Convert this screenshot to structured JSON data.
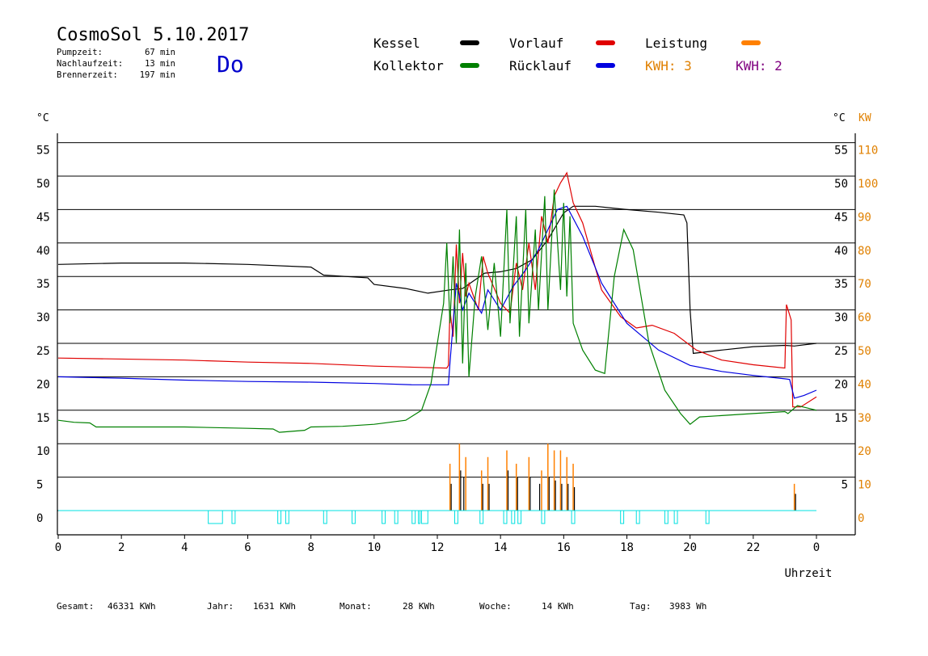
{
  "header": {
    "title": "CosmoSol 5.10.2017",
    "day": "Do",
    "stats": [
      {
        "label": "Pumpzeit:",
        "value": "67 min"
      },
      {
        "label": "Nachlaufzeit:",
        "value": "13 min"
      },
      {
        "label": "Brennerzeit:",
        "value": "197 min"
      }
    ]
  },
  "legend": [
    {
      "label": "Kessel",
      "color": "#000000"
    },
    {
      "label": "Vorlauf",
      "color": "#e00000"
    },
    {
      "label": "Leistung",
      "color": "#ff8000"
    },
    {
      "label": "Kollektor",
      "color": "#008000"
    },
    {
      "label": "Rücklauf",
      "color": "#0000e0"
    }
  ],
  "kwh": [
    {
      "label": "KWH: 3",
      "color": "#e08000"
    },
    {
      "label": "KWH: 2",
      "color": "#800080"
    }
  ],
  "footer": [
    {
      "label": "Gesamt:",
      "value": "46331 KWh"
    },
    {
      "label": "Jahr:",
      "value": "1631 KWh"
    },
    {
      "label": "Monat:",
      "value": "28 KWh"
    },
    {
      "label": "Woche:",
      "value": "14 KWh"
    },
    {
      "label": "Tag:",
      "value": "3983 Wh"
    }
  ],
  "chart_data": {
    "type": "line",
    "xlabel": "Uhrzeit",
    "ylabel_left": "°C",
    "ylabel_right": "°C",
    "ylabel_right2": "KW",
    "xlim": [
      0,
      24
    ],
    "ylim": [
      -4,
      60
    ],
    "x_ticks": [
      "0",
      "2",
      "4",
      "6",
      "8",
      "10",
      "12",
      "14",
      "16",
      "18",
      "20",
      "22",
      "0"
    ],
    "y_ticks_left": [
      0,
      5,
      10,
      15,
      20,
      25,
      30,
      35,
      40,
      45,
      50,
      55
    ],
    "y_ticks_right": [
      5,
      15,
      20,
      25,
      30,
      35,
      40,
      45,
      50,
      55
    ],
    "y_ticks_kw": [
      0,
      10,
      20,
      30,
      40,
      50,
      60,
      70,
      80,
      90,
      100,
      110
    ],
    "grid": true,
    "series": [
      {
        "name": "Kessel",
        "color": "#000000",
        "points": [
          [
            0,
            36.8
          ],
          [
            2,
            37
          ],
          [
            4,
            37
          ],
          [
            6,
            36.8
          ],
          [
            8,
            36.4
          ],
          [
            8.4,
            35.2
          ],
          [
            9.8,
            34.8
          ],
          [
            10,
            33.8
          ],
          [
            11,
            33.2
          ],
          [
            11.7,
            32.5
          ],
          [
            12.4,
            33
          ],
          [
            12.8,
            33.2
          ],
          [
            13.2,
            34.5
          ],
          [
            13.5,
            35.5
          ],
          [
            14,
            35.7
          ],
          [
            14.5,
            36.2
          ],
          [
            15,
            37.5
          ],
          [
            15.5,
            40.5
          ],
          [
            16,
            44.5
          ],
          [
            16.3,
            45.5
          ],
          [
            17,
            45.5
          ],
          [
            18,
            45
          ],
          [
            19,
            44.6
          ],
          [
            19.8,
            44.2
          ],
          [
            19.9,
            43
          ],
          [
            20,
            30
          ],
          [
            20.1,
            23.5
          ],
          [
            21,
            24
          ],
          [
            22,
            24.5
          ],
          [
            23,
            24.7
          ],
          [
            23.3,
            24.6
          ],
          [
            24,
            25
          ]
        ]
      },
      {
        "name": "Vorlauf",
        "color": "#e00000",
        "points": [
          [
            0,
            22.8
          ],
          [
            4,
            22.5
          ],
          [
            6,
            22.2
          ],
          [
            8,
            22
          ],
          [
            10,
            21.6
          ],
          [
            11.5,
            21.4
          ],
          [
            12.3,
            21.3
          ],
          [
            12.35,
            21.7
          ],
          [
            12.4,
            30
          ],
          [
            12.5,
            26
          ],
          [
            12.6,
            39.8
          ],
          [
            12.7,
            31
          ],
          [
            12.8,
            38.5
          ],
          [
            12.9,
            32
          ],
          [
            13,
            34
          ],
          [
            13.3,
            30
          ],
          [
            13.45,
            38
          ],
          [
            13.6,
            35.5
          ],
          [
            14,
            31
          ],
          [
            14.3,
            29.5
          ],
          [
            14.5,
            37
          ],
          [
            14.7,
            33
          ],
          [
            14.9,
            40
          ],
          [
            15.1,
            33
          ],
          [
            15.3,
            44
          ],
          [
            15.5,
            40
          ],
          [
            15.7,
            47
          ],
          [
            15.9,
            49
          ],
          [
            16.1,
            50.5
          ],
          [
            16.3,
            46
          ],
          [
            16.6,
            43
          ],
          [
            17.2,
            33
          ],
          [
            17.8,
            29
          ],
          [
            18.3,
            27.3
          ],
          [
            18.8,
            27.7
          ],
          [
            19.5,
            26.5
          ],
          [
            20.2,
            24
          ],
          [
            21,
            22.5
          ],
          [
            22,
            21.8
          ],
          [
            23,
            21.3
          ],
          [
            23.05,
            30.8
          ],
          [
            23.2,
            28.5
          ],
          [
            23.25,
            15.5
          ],
          [
            23.5,
            15.5
          ],
          [
            24,
            17
          ]
        ]
      },
      {
        "name": "Rücklauf",
        "color": "#0000e0",
        "points": [
          [
            0,
            20
          ],
          [
            2,
            19.8
          ],
          [
            4,
            19.5
          ],
          [
            6,
            19.3
          ],
          [
            8,
            19.2
          ],
          [
            10,
            19
          ],
          [
            11.2,
            18.8
          ],
          [
            12.35,
            18.8
          ],
          [
            12.4,
            22
          ],
          [
            12.6,
            34
          ],
          [
            12.8,
            30
          ],
          [
            13,
            32.5
          ],
          [
            13.4,
            29.5
          ],
          [
            13.6,
            33
          ],
          [
            14,
            30
          ],
          [
            14.4,
            33.5
          ],
          [
            14.8,
            36
          ],
          [
            15.2,
            39
          ],
          [
            15.5,
            42
          ],
          [
            15.8,
            45
          ],
          [
            16.1,
            45.5
          ],
          [
            16.6,
            41
          ],
          [
            17.2,
            34
          ],
          [
            18,
            28
          ],
          [
            19,
            24
          ],
          [
            20,
            21.7
          ],
          [
            21,
            20.8
          ],
          [
            22,
            20.2
          ],
          [
            23,
            19.7
          ],
          [
            23.15,
            19.6
          ],
          [
            23.3,
            16.8
          ],
          [
            23.6,
            17.2
          ],
          [
            24,
            18
          ]
        ]
      },
      {
        "name": "Kollektor",
        "color": "#008000",
        "points": [
          [
            0,
            13.5
          ],
          [
            0.5,
            13.2
          ],
          [
            1,
            13.1
          ],
          [
            1.2,
            12.5
          ],
          [
            4,
            12.5
          ],
          [
            6,
            12.3
          ],
          [
            6.8,
            12.2
          ],
          [
            7,
            11.7
          ],
          [
            7.8,
            12
          ],
          [
            8,
            12.5
          ],
          [
            9,
            12.6
          ],
          [
            10,
            12.9
          ],
          [
            11,
            13.5
          ],
          [
            11.5,
            15
          ],
          [
            11.8,
            19
          ],
          [
            12,
            25
          ],
          [
            12.2,
            31
          ],
          [
            12.3,
            40
          ],
          [
            12.4,
            28
          ],
          [
            12.5,
            38
          ],
          [
            12.6,
            25
          ],
          [
            12.7,
            42
          ],
          [
            12.8,
            22
          ],
          [
            12.9,
            37
          ],
          [
            13,
            20
          ],
          [
            13.2,
            32
          ],
          [
            13.4,
            38
          ],
          [
            13.6,
            27
          ],
          [
            13.8,
            37
          ],
          [
            14,
            26
          ],
          [
            14.2,
            45
          ],
          [
            14.3,
            28
          ],
          [
            14.5,
            44
          ],
          [
            14.6,
            26
          ],
          [
            14.8,
            45
          ],
          [
            14.9,
            28
          ],
          [
            15.1,
            42
          ],
          [
            15.2,
            30
          ],
          [
            15.4,
            47
          ],
          [
            15.5,
            30
          ],
          [
            15.7,
            48
          ],
          [
            15.9,
            33
          ],
          [
            16,
            46
          ],
          [
            16.1,
            32
          ],
          [
            16.2,
            44
          ],
          [
            16.3,
            28
          ],
          [
            16.6,
            24
          ],
          [
            17,
            21
          ],
          [
            17.3,
            20.5
          ],
          [
            17.6,
            35
          ],
          [
            17.9,
            42
          ],
          [
            18.2,
            39
          ],
          [
            18.7,
            25
          ],
          [
            19.2,
            18
          ],
          [
            19.7,
            14.5
          ],
          [
            20,
            12.9
          ],
          [
            20.3,
            14
          ],
          [
            21,
            14.2
          ],
          [
            22,
            14.5
          ],
          [
            23,
            14.8
          ],
          [
            23.1,
            14.5
          ],
          [
            23.4,
            15.7
          ],
          [
            24,
            15
          ]
        ]
      }
    ],
    "bars_power": [
      [
        12.4,
        7
      ],
      [
        12.7,
        10
      ],
      [
        12.9,
        8
      ],
      [
        13.4,
        6
      ],
      [
        13.6,
        8
      ],
      [
        14.2,
        9
      ],
      [
        14.5,
        7
      ],
      [
        14.9,
        8
      ],
      [
        15.3,
        6
      ],
      [
        15.5,
        10
      ],
      [
        15.7,
        9
      ],
      [
        15.9,
        9
      ],
      [
        16.1,
        8
      ],
      [
        16.3,
        7
      ],
      [
        23.3,
        4
      ]
    ],
    "bars_pump": [
      [
        12.4,
        4
      ],
      [
        12.7,
        6
      ],
      [
        12.8,
        5
      ],
      [
        13.4,
        4
      ],
      [
        13.6,
        4
      ],
      [
        14.2,
        6
      ],
      [
        14.5,
        5
      ],
      [
        14.9,
        5
      ],
      [
        15.2,
        4
      ],
      [
        15.5,
        5
      ],
      [
        15.7,
        4.5
      ],
      [
        15.9,
        4
      ],
      [
        16.1,
        4
      ],
      [
        16.3,
        3.5
      ],
      [
        23.3,
        2.5
      ]
    ],
    "flags": [
      [
        4.75,
        5.2
      ],
      [
        5.5,
        5.6
      ],
      [
        6.95,
        7.05
      ],
      [
        7.2,
        7.3
      ],
      [
        8.4,
        8.5
      ],
      [
        9.3,
        9.4
      ],
      [
        10.25,
        10.35
      ],
      [
        10.65,
        10.75
      ],
      [
        11.2,
        11.3
      ],
      [
        11.4,
        11.45
      ],
      [
        11.5,
        11.7
      ],
      [
        12.55,
        12.65
      ],
      [
        13.35,
        13.45
      ],
      [
        14.1,
        14.2
      ],
      [
        14.35,
        14.45
      ],
      [
        14.55,
        14.65
      ],
      [
        15.3,
        15.4
      ],
      [
        16.25,
        16.35
      ],
      [
        17.8,
        17.9
      ],
      [
        18.3,
        18.4
      ],
      [
        19.2,
        19.3
      ],
      [
        19.5,
        19.6
      ],
      [
        20.5,
        20.6
      ]
    ]
  }
}
